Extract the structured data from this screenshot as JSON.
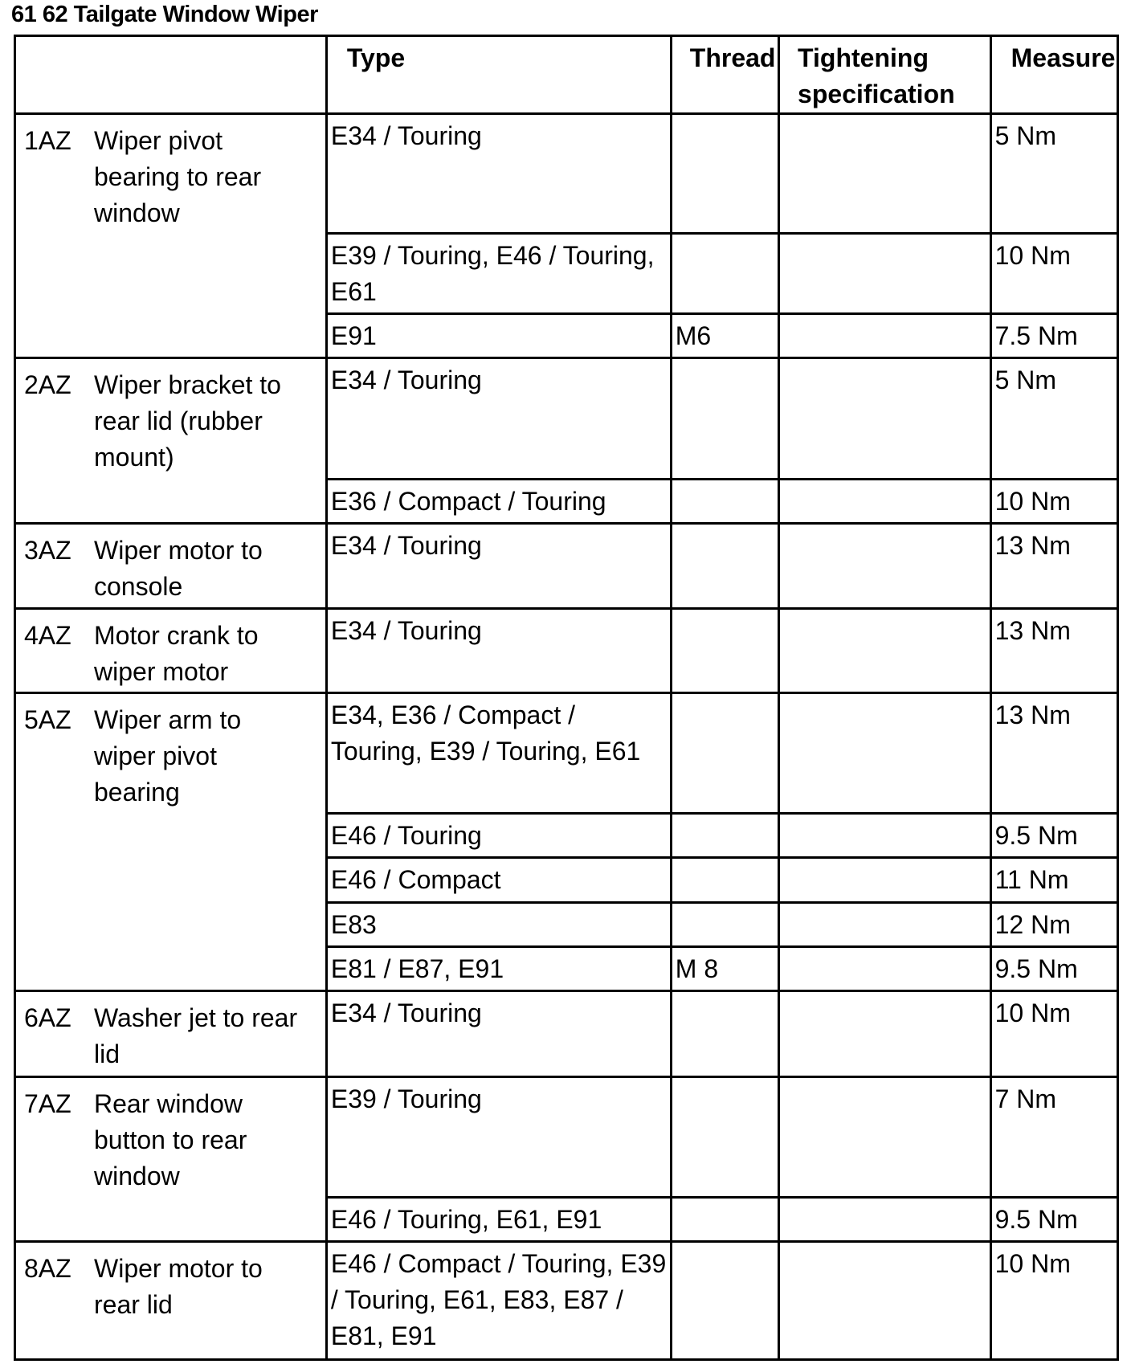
{
  "title": "61 62 Tailgate Window Wiper",
  "headers": {
    "position": "",
    "type": "Type",
    "thread": "Thread",
    "spec": "Tightening specification",
    "measure": "Measure"
  },
  "rows": [
    {
      "num": "1AZ",
      "desc": "Wiper pivot bearing to rear window",
      "entries": [
        {
          "type": "E34 / Touring",
          "thread": "",
          "spec": "",
          "measure": "5 Nm"
        },
        {
          "type": "E39 / Touring, E46 / Touring, E61",
          "thread": "",
          "spec": "",
          "measure": "10 Nm"
        },
        {
          "type": "E91",
          "thread": "M6",
          "spec": "",
          "measure": "7.5 Nm"
        }
      ]
    },
    {
      "num": "2AZ",
      "desc": "Wiper bracket to rear lid (rubber mount)",
      "entries": [
        {
          "type": "E34 / Touring",
          "thread": "",
          "spec": "",
          "measure": "5 Nm"
        },
        {
          "type": "E36 / Compact / Touring",
          "thread": "",
          "spec": "",
          "measure": "10 Nm"
        }
      ]
    },
    {
      "num": "3AZ",
      "desc": "Wiper motor to console",
      "entries": [
        {
          "type": "E34 / Touring",
          "thread": "",
          "spec": "",
          "measure": "13 Nm"
        }
      ]
    },
    {
      "num": "4AZ",
      "desc": "Motor crank to wiper motor",
      "entries": [
        {
          "type": "E34 / Touring",
          "thread": "",
          "spec": "",
          "measure": "13 Nm"
        }
      ]
    },
    {
      "num": "5AZ",
      "desc": "Wiper arm to wiper pivot bearing",
      "entries": [
        {
          "type": "E34, E36 / Compact / Touring, E39 / Touring, E61",
          "thread": "",
          "spec": "",
          "measure": "13 Nm"
        },
        {
          "type": "E46 / Touring",
          "thread": "",
          "spec": "",
          "measure": "9.5 Nm"
        },
        {
          "type": "E46 / Compact",
          "thread": "",
          "spec": "",
          "measure": "11 Nm"
        },
        {
          "type": "E83",
          "thread": "",
          "spec": "",
          "measure": "12 Nm"
        },
        {
          "type": "E81 / E87, E91",
          "thread": "M 8",
          "spec": "",
          "measure": "9.5 Nm"
        }
      ]
    },
    {
      "num": "6AZ",
      "desc": "Washer jet to rear lid",
      "entries": [
        {
          "type": "E34 / Touring",
          "thread": "",
          "spec": "",
          "measure": "10 Nm"
        }
      ]
    },
    {
      "num": "7AZ",
      "desc": "Rear window button to rear window",
      "entries": [
        {
          "type": "E39 / Touring",
          "thread": "",
          "spec": "",
          "measure": "7 Nm"
        },
        {
          "type": "E46 / Touring, E61, E91",
          "thread": "",
          "spec": "",
          "measure": "9.5 Nm"
        }
      ]
    },
    {
      "num": "8AZ",
      "desc": "Wiper motor to rear lid",
      "entries": [
        {
          "type": "E46 / Compact / Touring, E39 / Touring, E61, E83, E87 / E81, E91",
          "thread": "",
          "spec": "",
          "measure": "10 Nm"
        }
      ]
    }
  ]
}
